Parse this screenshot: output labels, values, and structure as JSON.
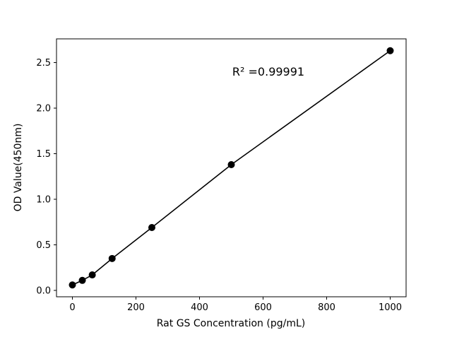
{
  "figure": {
    "background": "#ffffff"
  },
  "chart_data": {
    "type": "scatter",
    "title": "",
    "xlabel": "Rat GS Concentration (pg/mL)",
    "ylabel": "OD Value(450nm)",
    "annotation": "R² =0.99991",
    "x": [
      0,
      31.25,
      62.5,
      125,
      250,
      500,
      1000
    ],
    "y": [
      0.06,
      0.11,
      0.17,
      0.35,
      0.69,
      1.38,
      2.63
    ],
    "xticks": [
      0,
      200,
      400,
      600,
      800,
      1000
    ],
    "yticks": [
      0.0,
      0.5,
      1.0,
      1.5,
      2.0,
      2.5
    ],
    "xlim": [
      -50,
      1050
    ],
    "ylim": [
      -0.07,
      2.76
    ],
    "grid": false,
    "legend": false,
    "line_color": "#000000",
    "marker_color": "#000000",
    "frame_color": "#000000"
  }
}
